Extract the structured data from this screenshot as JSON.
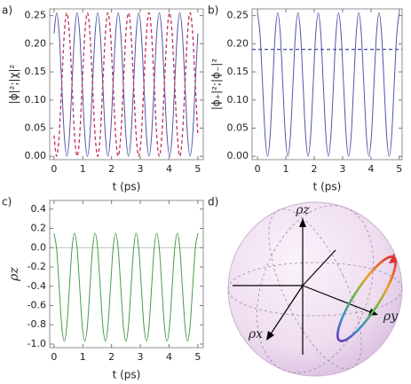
{
  "chart_data": [
    {
      "type": "line",
      "label": "a)",
      "xlabel": "t (ps)",
      "ylabel": "|ϕ|²;|χ|²",
      "xlim": [
        -0.15,
        5.19
      ],
      "ylim": [
        -0.006,
        0.262
      ],
      "xticks": [
        0,
        1,
        2,
        3,
        4,
        5
      ],
      "yticks": [
        {
          "value": 0,
          "label": "0.00"
        },
        {
          "value": 0.05,
          "label": "0.05"
        },
        {
          "value": 0.1,
          "label": "0.10"
        },
        {
          "value": 0.15,
          "label": "0.15"
        },
        {
          "value": 0.2,
          "label": "0.20"
        },
        {
          "value": 0.25,
          "label": "0.25"
        }
      ],
      "x": [
        0,
        0.089,
        0.179,
        0.268,
        0.357,
        0.446,
        0.536,
        0.625,
        0.714,
        0.804,
        0.893,
        0.982,
        1.071,
        1.161,
        1.25,
        1.339,
        1.429,
        1.518,
        1.607,
        1.696,
        1.786,
        1.875,
        1.964,
        2.054,
        2.143,
        2.232,
        2.321,
        2.411,
        2.5,
        2.589,
        2.679,
        2.768,
        2.857,
        2.946,
        3.036,
        3.125,
        3.214,
        3.304,
        3.393,
        3.482,
        3.571,
        3.661,
        3.75,
        3.839,
        3.929,
        4.018,
        4.107,
        4.196,
        4.286,
        4.375,
        4.464,
        4.554,
        4.643,
        4.732,
        4.821,
        4.911,
        5.0
      ],
      "series": [
        {
          "color": "#4f57a6",
          "dashed": false,
          "values": [
            0.218,
            0.255,
            0.218,
            0.128,
            0.037,
            0,
            0.037,
            0.128,
            0.218,
            0.255,
            0.218,
            0.128,
            0.037,
            0,
            0.037,
            0.128,
            0.218,
            0.255,
            0.218,
            0.128,
            0.037,
            0,
            0.037,
            0.128,
            0.218,
            0.255,
            0.218,
            0.128,
            0.037,
            0,
            0.037,
            0.128,
            0.218,
            0.255,
            0.218,
            0.128,
            0.037,
            0,
            0.037,
            0.128,
            0.218,
            0.255,
            0.218,
            0.128,
            0.037,
            0,
            0.037,
            0.128,
            0.218,
            0.255,
            0.218,
            0.128,
            0.037,
            0,
            0.037,
            0.128,
            0.218
          ]
        },
        {
          "color": "#c2305c",
          "dashed": true,
          "values": [
            0.037,
            0,
            0.037,
            0.128,
            0.218,
            0.255,
            0.218,
            0.128,
            0.037,
            0,
            0.037,
            0.128,
            0.218,
            0.255,
            0.218,
            0.128,
            0.037,
            0,
            0.037,
            0.128,
            0.218,
            0.255,
            0.218,
            0.128,
            0.037,
            0,
            0.037,
            0.128,
            0.218,
            0.255,
            0.218,
            0.128,
            0.037,
            0,
            0.037,
            0.128,
            0.218,
            0.255,
            0.218,
            0.128,
            0.037,
            0,
            0.037,
            0.128,
            0.218,
            0.255,
            0.218,
            0.128,
            0.037,
            0,
            0.037,
            0.128,
            0.218,
            0.255,
            0.218,
            0.128,
            0.037
          ]
        }
      ]
    },
    {
      "type": "line",
      "label": "b)",
      "xlabel": "t (ps)",
      "ylabel": "|ϕ₊|²;|ϕ₋|²",
      "xlim": [
        -0.19,
        5.1
      ],
      "ylim": [
        -0.006,
        0.262
      ],
      "xticks": [
        0,
        1,
        2,
        3,
        4,
        5
      ],
      "yticks": [
        {
          "value": 0,
          "label": "0.00"
        },
        {
          "value": 0.05,
          "label": "0.05"
        },
        {
          "value": 0.1,
          "label": "0.10"
        },
        {
          "value": 0.15,
          "label": "0.15"
        },
        {
          "value": 0.2,
          "label": "0.20"
        },
        {
          "value": 0.25,
          "label": "0.25"
        }
      ],
      "x": [
        0,
        0.089,
        0.179,
        0.268,
        0.357,
        0.446,
        0.536,
        0.625,
        0.714,
        0.804,
        0.893,
        0.982,
        1.071,
        1.161,
        1.25,
        1.339,
        1.429,
        1.518,
        1.607,
        1.696,
        1.786,
        1.875,
        1.964,
        2.054,
        2.143,
        2.232,
        2.321,
        2.411,
        2.5,
        2.589,
        2.679,
        2.768,
        2.857,
        2.946,
        3.036,
        3.125,
        3.214,
        3.304,
        3.393,
        3.482,
        3.571,
        3.661,
        3.75,
        3.839,
        3.929,
        4.018,
        4.107,
        4.196,
        4.286,
        4.375,
        4.464,
        4.554,
        4.643,
        4.732,
        4.821,
        4.911,
        5.0
      ],
      "series": [
        {
          "color": "#4f57a6",
          "dashed": false,
          "values": [
            0.255,
            0.218,
            0.128,
            0.037,
            0,
            0.037,
            0.128,
            0.218,
            0.255,
            0.218,
            0.128,
            0.037,
            0,
            0.037,
            0.128,
            0.218,
            0.255,
            0.218,
            0.128,
            0.037,
            0,
            0.037,
            0.128,
            0.218,
            0.255,
            0.218,
            0.128,
            0.037,
            0,
            0.037,
            0.128,
            0.218,
            0.255,
            0.218,
            0.128,
            0.037,
            0,
            0.037,
            0.128,
            0.218,
            0.255,
            0.218,
            0.128,
            0.037,
            0,
            0.037,
            0.128,
            0.218,
            0.255,
            0.218,
            0.128,
            0.037,
            0,
            0.037,
            0.128,
            0.218,
            0.255
          ]
        },
        {
          "color": "#4f57a6",
          "dashed": true,
          "x": [
            -0.19,
            5.1
          ],
          "values": [
            0.19,
            0.19
          ]
        }
      ]
    },
    {
      "type": "line",
      "label": "c)",
      "xlabel": "t (ps)",
      "ylabel": "ρz",
      "zero_axis": true,
      "xlim": [
        -0.15,
        5.19
      ],
      "ylim": [
        -1.037,
        0.49
      ],
      "xticks": [
        0,
        1,
        2,
        3,
        4,
        5
      ],
      "yticks": [
        0.4,
        0.2,
        {
          "value": 0,
          "label": "0.0"
        },
        -0.2,
        -0.4,
        -0.6,
        -0.8,
        {
          "value": -1,
          "label": "-1.0"
        }
      ],
      "x": [
        0,
        0.089,
        0.179,
        0.268,
        0.357,
        0.446,
        0.536,
        0.625,
        0.714,
        0.804,
        0.893,
        0.982,
        1.071,
        1.161,
        1.25,
        1.339,
        1.429,
        1.518,
        1.607,
        1.696,
        1.786,
        1.875,
        1.964,
        2.054,
        2.143,
        2.232,
        2.321,
        2.411,
        2.5,
        2.589,
        2.679,
        2.768,
        2.857,
        2.946,
        3.036,
        3.125,
        3.214,
        3.304,
        3.393,
        3.482,
        3.571,
        3.661,
        3.75,
        3.839,
        3.929,
        4.018,
        4.107,
        4.196,
        4.286,
        4.375,
        4.464,
        4.554,
        4.643,
        4.732,
        4.821,
        4.911,
        5.0
      ],
      "series": [
        {
          "color": "#4a9a4c",
          "dashed": false,
          "values": [
            0.15,
            -0.01,
            -0.41,
            -0.81,
            -0.97,
            -0.81,
            -0.41,
            -0.01,
            0.15,
            -0.01,
            -0.41,
            -0.81,
            -0.97,
            -0.81,
            -0.41,
            -0.01,
            0.15,
            -0.01,
            -0.41,
            -0.81,
            -0.97,
            -0.81,
            -0.41,
            -0.01,
            0.15,
            -0.01,
            -0.41,
            -0.81,
            -0.97,
            -0.81,
            -0.41,
            -0.01,
            0.15,
            -0.01,
            -0.41,
            -0.81,
            -0.97,
            -0.81,
            -0.41,
            -0.01,
            0.15,
            -0.01,
            -0.41,
            -0.81,
            -0.97,
            -0.81,
            -0.41,
            -0.01,
            0.15,
            -0.01,
            -0.41,
            -0.81,
            -0.97,
            -0.81,
            -0.41,
            -0.01,
            0.15
          ]
        }
      ]
    },
    {
      "type": "bloch",
      "label": "d)",
      "axis_labels": {
        "z": "ρz",
        "y": "ρy",
        "x": "ρx"
      }
    }
  ]
}
